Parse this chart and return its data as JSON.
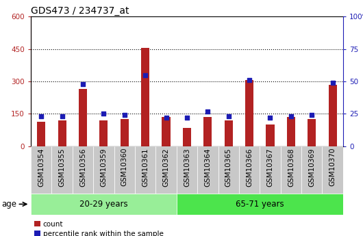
{
  "title": "GDS473 / 234737_at",
  "samples": [
    "GSM10354",
    "GSM10355",
    "GSM10356",
    "GSM10359",
    "GSM10360",
    "GSM10361",
    "GSM10362",
    "GSM10363",
    "GSM10364",
    "GSM10365",
    "GSM10366",
    "GSM10367",
    "GSM10368",
    "GSM10369",
    "GSM10370"
  ],
  "counts": [
    115,
    120,
    265,
    120,
    125,
    455,
    135,
    85,
    135,
    120,
    305,
    100,
    135,
    125,
    285
  ],
  "percentiles": [
    23,
    23,
    48,
    25,
    24,
    55,
    22,
    22,
    27,
    23,
    51,
    22,
    23,
    24,
    49
  ],
  "n_group1": 7,
  "n_group2": 8,
  "group1_label": "20-29 years",
  "group2_label": "65-71 years",
  "age_label": "age",
  "ylim_left": [
    0,
    600
  ],
  "ylim_right": [
    0,
    100
  ],
  "yticks_left": [
    0,
    150,
    300,
    450,
    600
  ],
  "yticks_right": [
    0,
    25,
    50,
    75,
    100
  ],
  "bar_color": "#B22222",
  "dot_color": "#1C1CB4",
  "xtick_bg_color": "#C8C8C8",
  "group1_color": "#98EE98",
  "group2_color": "#4CE44C",
  "legend_count": "count",
  "legend_pct": "percentile rank within the sample",
  "title_fontsize": 10,
  "tick_fontsize": 7.5,
  "label_fontsize": 8.5,
  "bar_width": 0.4
}
